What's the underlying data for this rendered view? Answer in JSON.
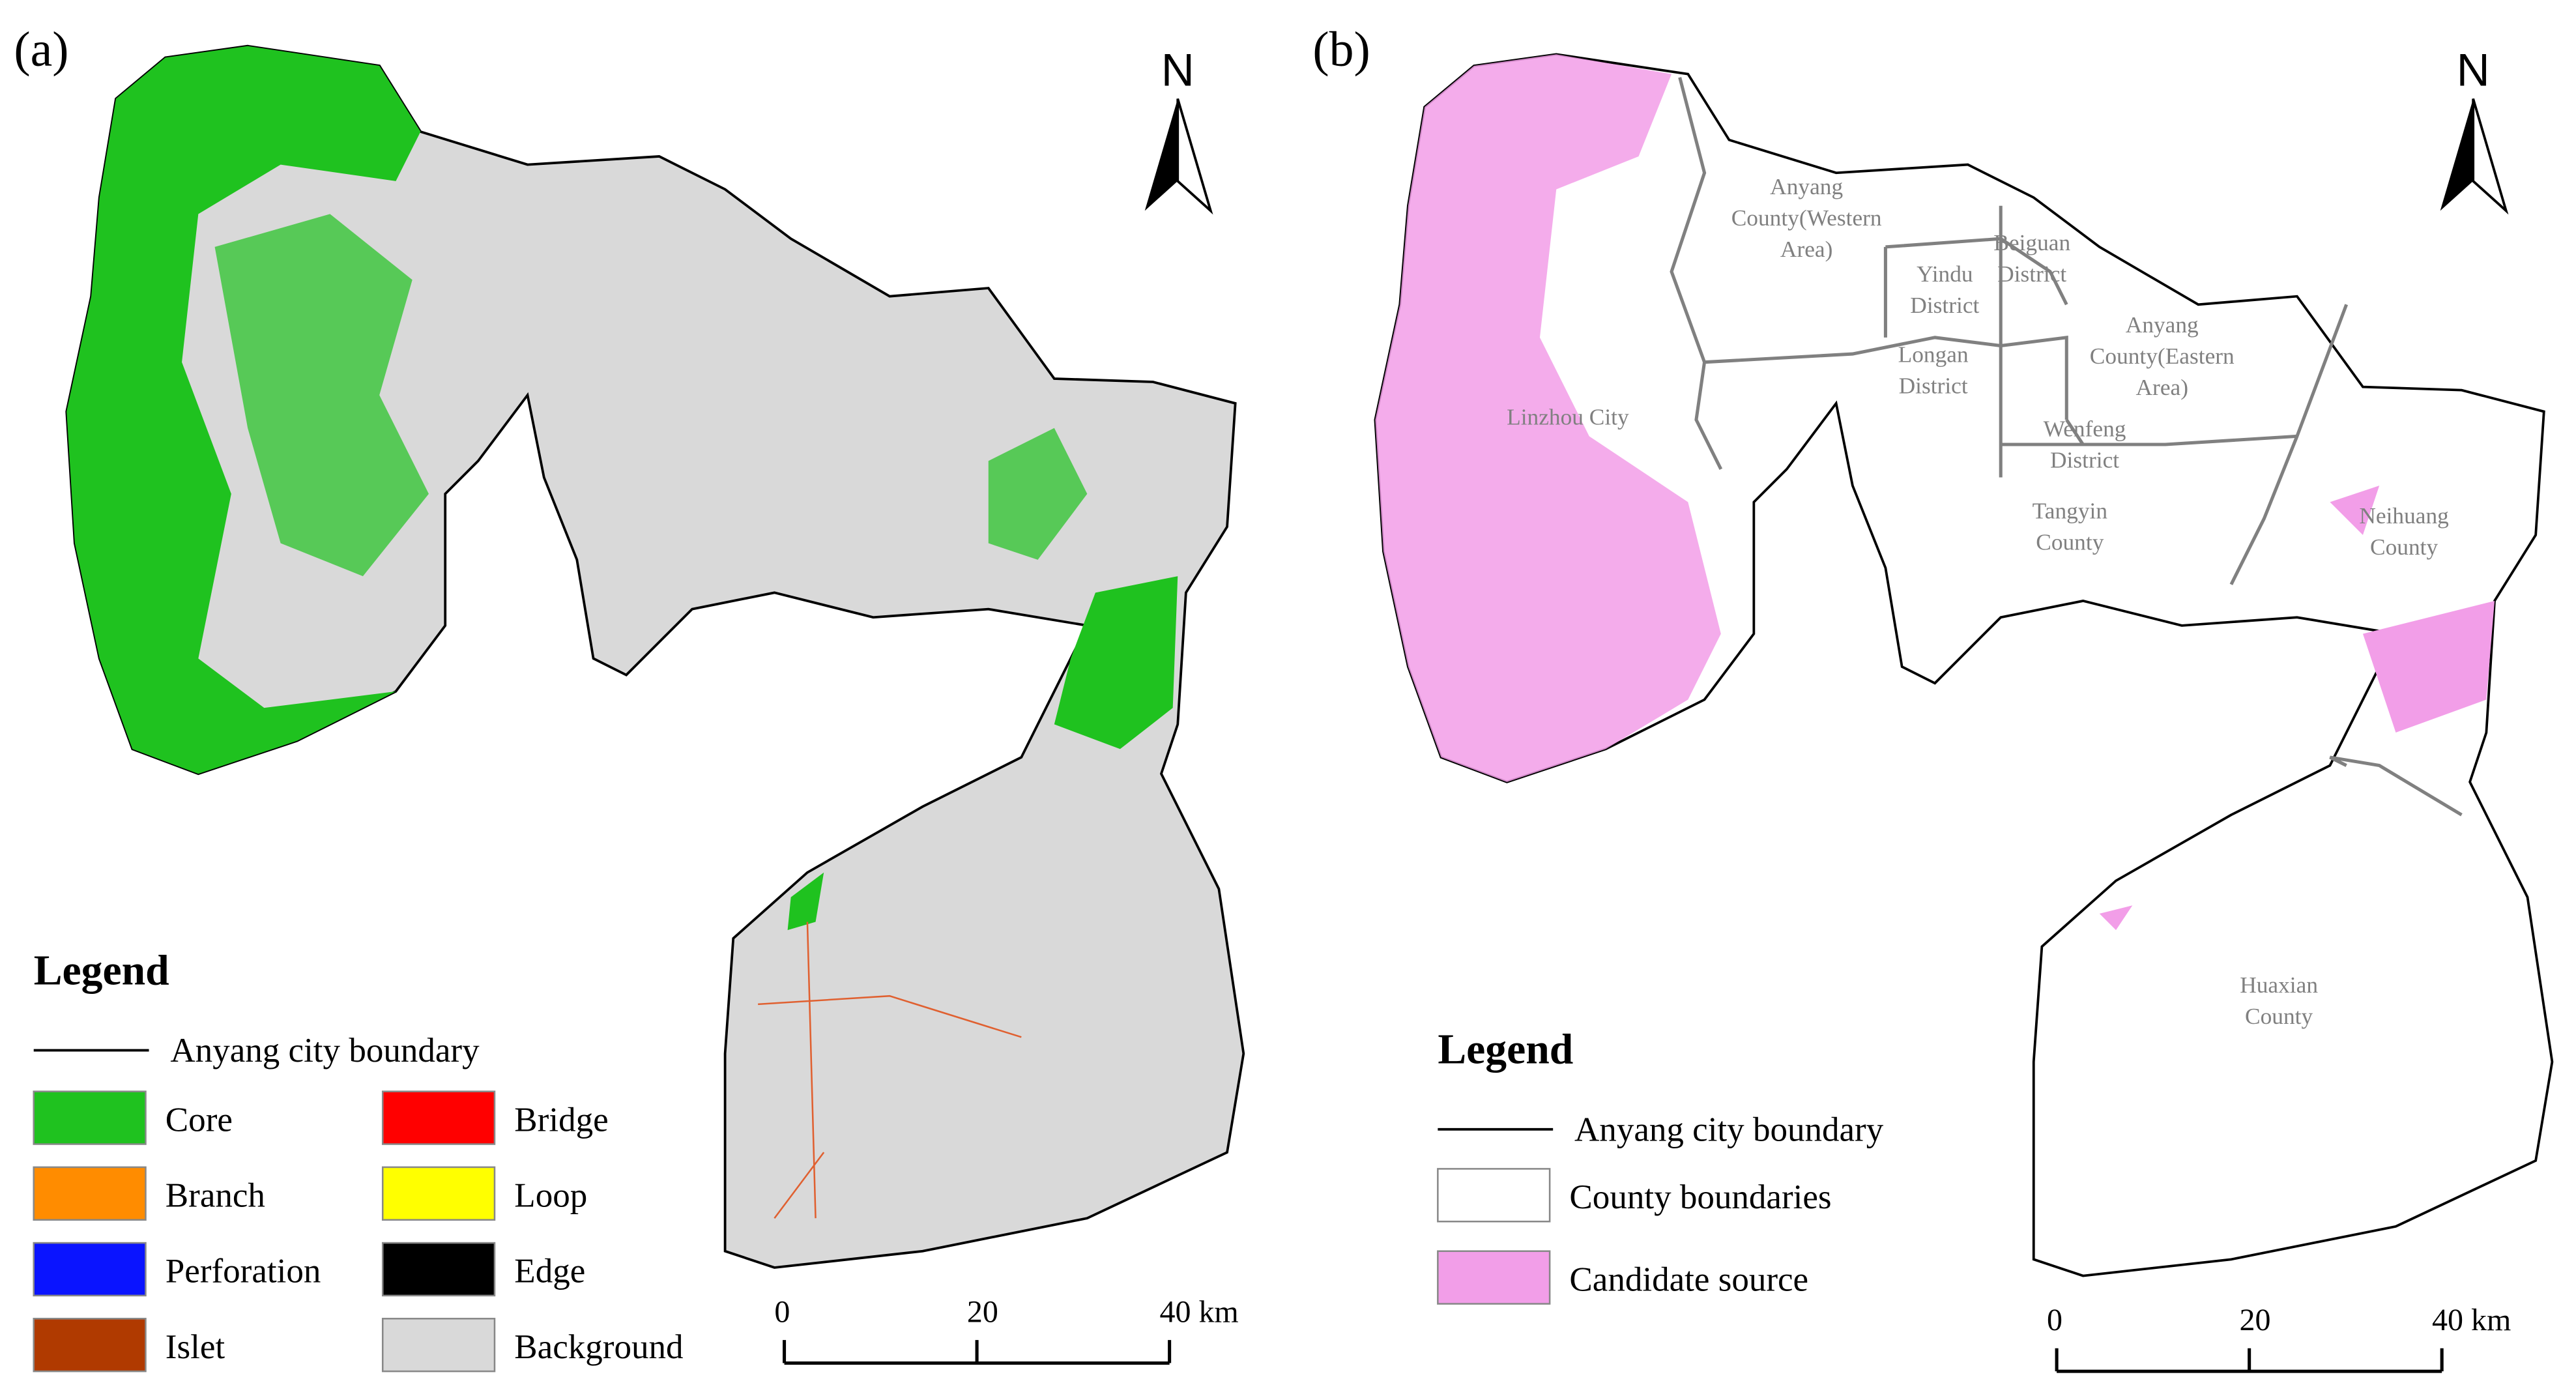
{
  "panel_a": {
    "label": "(a)",
    "north": "N",
    "legend": {
      "title": "Legend",
      "boundary": "Anyang city boundary",
      "items": [
        {
          "name": "Core",
          "color": "#1fc21f"
        },
        {
          "name": "Branch",
          "color": "#ff8c00"
        },
        {
          "name": "Perforation",
          "color": "#0a14ff"
        },
        {
          "name": "Islet",
          "color": "#b03a00"
        },
        {
          "name": "Bridge",
          "color": "#ff0000"
        },
        {
          "name": "Loop",
          "color": "#ffff00"
        },
        {
          "name": "Edge",
          "color": "#000000"
        },
        {
          "name": "Background",
          "color": "#d9d9d9"
        }
      ]
    },
    "scale_bar": {
      "ticks": [
        {
          "value": 0,
          "label": "0"
        },
        {
          "value": 20,
          "label": "20"
        },
        {
          "value": 40,
          "label": "40 km"
        }
      ]
    }
  },
  "panel_b": {
    "label": "(b)",
    "north": "N",
    "counties": [
      {
        "lines": [
          "Anyang",
          "County(Western",
          "Area)"
        ]
      },
      {
        "lines": [
          "Yindu",
          "District"
        ]
      },
      {
        "lines": [
          "Beiguan",
          "District"
        ]
      },
      {
        "lines": [
          "Anyang",
          "County(Eastern",
          "Area)"
        ]
      },
      {
        "lines": [
          "Linzhou City"
        ]
      },
      {
        "lines": [
          "Longan",
          "District"
        ]
      },
      {
        "lines": [
          "Wenfeng",
          "District"
        ]
      },
      {
        "lines": [
          "Tangyin",
          "County"
        ]
      },
      {
        "lines": [
          "Neihuang",
          "County"
        ]
      },
      {
        "lines": [
          "Huaxian",
          "County"
        ]
      }
    ],
    "legend": {
      "title": "Legend",
      "boundary": "Anyang city boundary",
      "items": [
        {
          "name": "County boundaries",
          "color": "#ffffff"
        },
        {
          "name": "Candidate source",
          "color": "#f29ee8"
        }
      ]
    },
    "scale_bar": {
      "ticks": [
        {
          "value": 0,
          "label": "0"
        },
        {
          "value": 20,
          "label": "20"
        },
        {
          "value": 40,
          "label": "40 km"
        }
      ]
    }
  }
}
